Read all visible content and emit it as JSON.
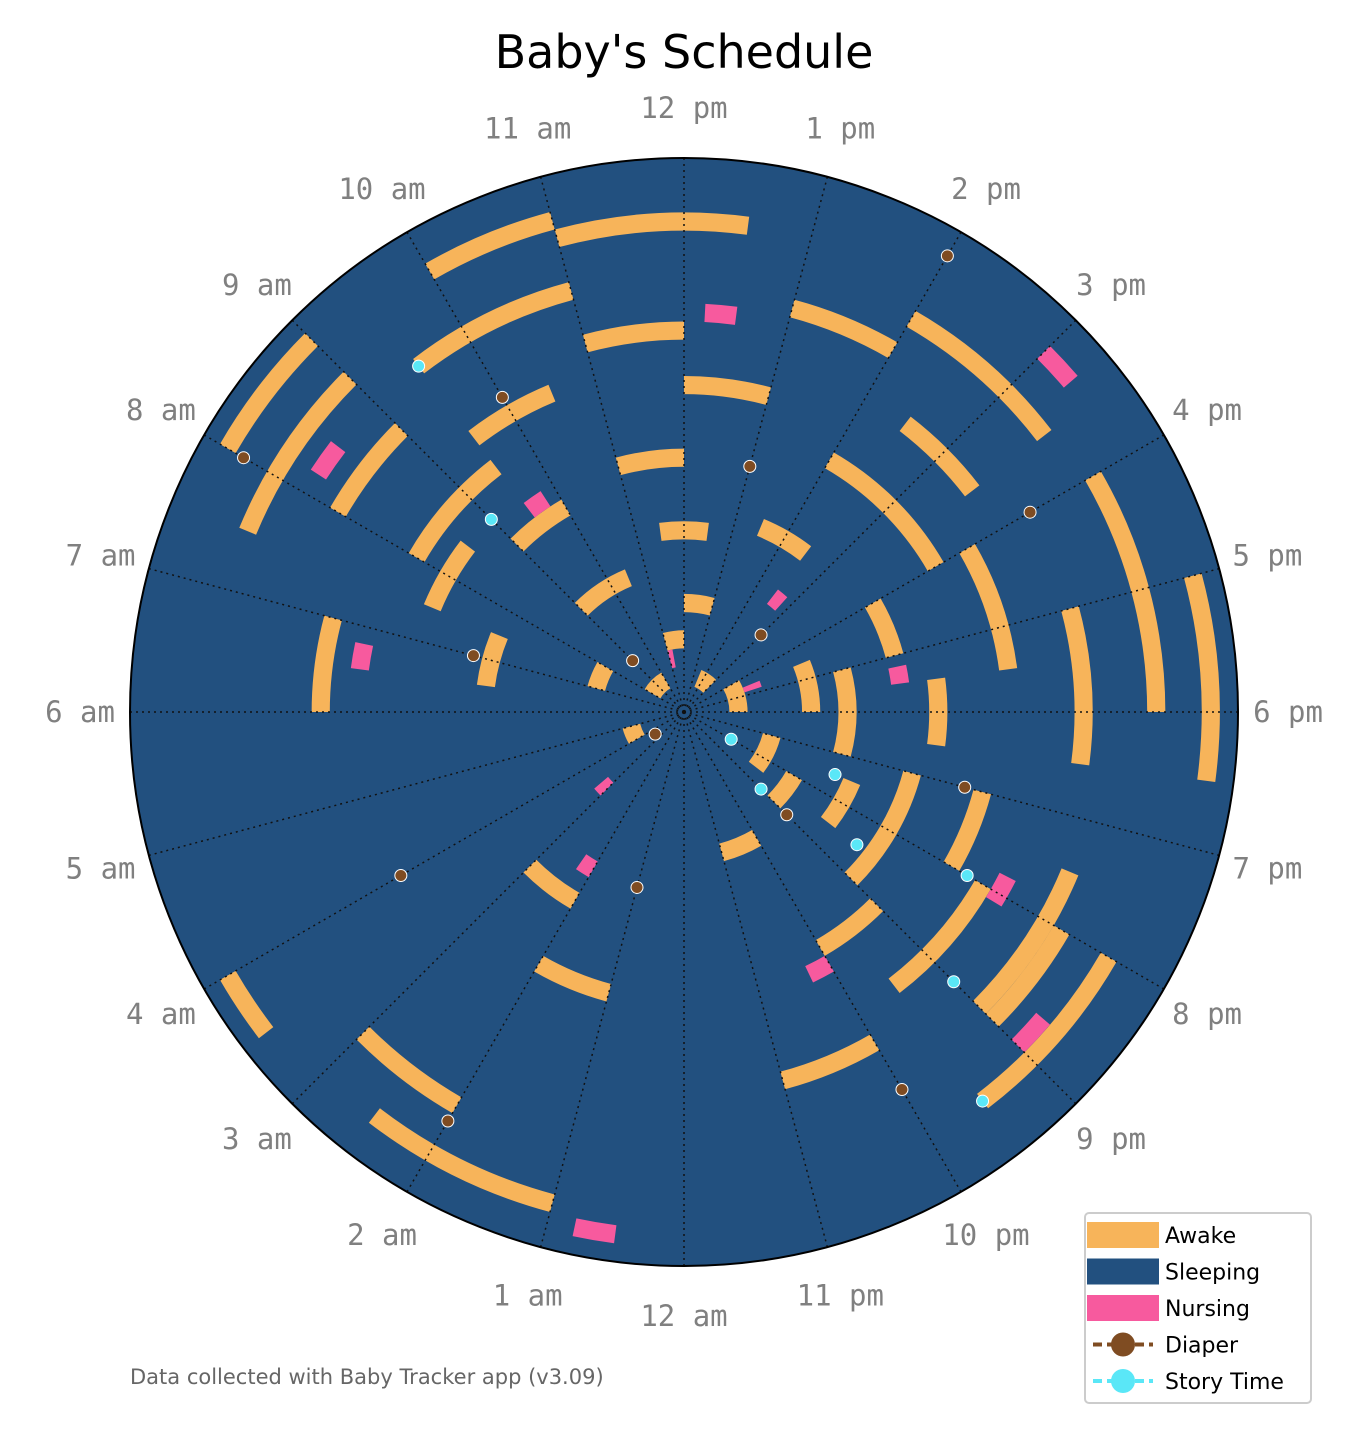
{
  "chart_data": {
    "type": "polar-bar",
    "title": "Baby's Schedule",
    "footer": "Data collected with Baby Tracker app (v3.09)",
    "hour_labels": [
      "12 am",
      "1 am",
      "2 am",
      "3 am",
      "4 am",
      "5 am",
      "6 am",
      "7 am",
      "8 am",
      "9 am",
      "10 am",
      "11 am",
      "12 pm",
      "1 pm",
      "2 pm",
      "3 pm",
      "4 pm",
      "5 pm",
      "6 pm",
      "7 pm",
      "8 pm",
      "9 pm",
      "10 pm",
      "11 pm"
    ],
    "angular_direction": "clockwise",
    "zero_location": "bottom (12 am)",
    "radial_units": "days",
    "radial_range": [
      0,
      30
    ],
    "grid": true,
    "legend_position": "lower-right",
    "colors": {
      "Awake": "#f7b45a",
      "Sleeping": "#22507f",
      "Nursing": "#f75a9e",
      "Diaper": "#7f4c22",
      "Story Time": "#5ae7f7"
    },
    "legend": [
      {
        "label": "Awake",
        "kind": "patch"
      },
      {
        "label": "Sleeping",
        "kind": "patch"
      },
      {
        "label": "Nursing",
        "kind": "patch"
      },
      {
        "label": "Diaper",
        "kind": "marker"
      },
      {
        "label": "Story Time",
        "kind": "marker"
      }
    ],
    "series": [
      {
        "name": "Awake",
        "segments": [
          [
            2,
            8,
            10
          ],
          [
            2,
            13.5,
            15
          ],
          [
            3,
            16,
            18
          ],
          [
            3,
            4,
            5
          ],
          [
            4,
            11,
            12
          ],
          [
            5,
            19,
            20.5
          ],
          [
            5,
            7,
            8
          ],
          [
            6,
            12,
            13
          ],
          [
            7,
            16.5,
            18
          ],
          [
            7,
            20,
            21
          ],
          [
            8,
            9,
            10.5
          ],
          [
            8,
            22,
            23
          ],
          [
            9,
            17,
            19
          ],
          [
            10,
            11.5,
            12.5
          ],
          [
            10,
            19.5,
            20.5
          ],
          [
            11,
            6.5,
            7.5
          ],
          [
            11,
            13.5,
            14.5
          ],
          [
            12,
            2,
            3
          ],
          [
            12,
            16,
            17
          ],
          [
            13,
            19,
            21
          ],
          [
            13,
            9,
            10
          ],
          [
            14,
            11,
            12
          ],
          [
            14,
            17.5,
            18.5
          ],
          [
            15,
            21,
            22
          ],
          [
            15,
            7.5,
            8.5
          ],
          [
            16,
            14,
            16
          ],
          [
            16,
            1,
            2
          ],
          [
            17,
            8,
            9.5
          ],
          [
            17,
            19,
            20
          ],
          [
            18,
            12,
            13
          ],
          [
            18,
            16,
            17.5
          ],
          [
            19,
            20,
            21.5
          ],
          [
            19,
            9.5,
            10.5
          ],
          [
            20,
            6,
            7
          ],
          [
            20,
            14.5,
            15.5
          ],
          [
            21,
            22,
            23
          ],
          [
            21,
            11,
            12
          ],
          [
            22,
            17,
            18.5
          ],
          [
            22,
            8,
            9
          ],
          [
            23,
            19.5,
            21
          ],
          [
            23,
            13,
            14
          ],
          [
            24,
            9.5,
            11
          ],
          [
            24,
            20,
            21
          ],
          [
            25,
            2,
            3
          ],
          [
            25,
            14,
            15.5
          ],
          [
            26,
            7.5,
            9
          ],
          [
            26,
            16,
            18
          ],
          [
            27,
            11,
            12.5
          ],
          [
            27,
            20,
            21.5
          ],
          [
            28,
            10,
            11
          ],
          [
            28,
            1,
            2.5
          ],
          [
            29,
            17,
            18.5
          ],
          [
            29,
            8,
            9
          ],
          [
            29,
            3.5,
            4
          ]
        ]
      },
      {
        "name": "Nursing",
        "segments": [
          [
            3,
            11,
            11.3
          ],
          [
            4,
            16.5,
            16.8
          ],
          [
            6,
            3,
            3.3
          ],
          [
            8,
            14.5,
            14.8
          ],
          [
            10,
            2,
            2.3
          ],
          [
            12,
            17.2,
            17.5
          ],
          [
            14,
            9.5,
            9.8
          ],
          [
            16,
            22,
            22.3
          ],
          [
            18,
            6.5,
            6.8
          ],
          [
            20,
            19.8,
            20.1
          ],
          [
            22,
            12.2,
            12.5
          ],
          [
            24,
            8.2,
            8.5
          ],
          [
            26,
            20.7,
            21
          ],
          [
            28,
            15,
            15.3
          ],
          [
            29,
            0.5,
            0.8
          ]
        ]
      },
      {
        "name": "Diaper",
        "points": [
          [
            2,
            3.5
          ],
          [
            4,
            9
          ],
          [
            6,
            15
          ],
          [
            8,
            21
          ],
          [
            10,
            1
          ],
          [
            12,
            7
          ],
          [
            14,
            13
          ],
          [
            16,
            19
          ],
          [
            18,
            4
          ],
          [
            20,
            10
          ],
          [
            22,
            16
          ],
          [
            24,
            22
          ],
          [
            26,
            2
          ],
          [
            28,
            8
          ],
          [
            29,
            14
          ]
        ]
      },
      {
        "name": "Story Time",
        "points": [
          [
            3,
            20
          ],
          [
            6,
            21
          ],
          [
            9,
            19.5
          ],
          [
            12,
            20.5
          ],
          [
            15,
            9
          ],
          [
            18,
            20
          ],
          [
            21,
            21
          ],
          [
            24,
            9.5
          ],
          [
            27,
            21.5
          ]
        ]
      }
    ]
  }
}
